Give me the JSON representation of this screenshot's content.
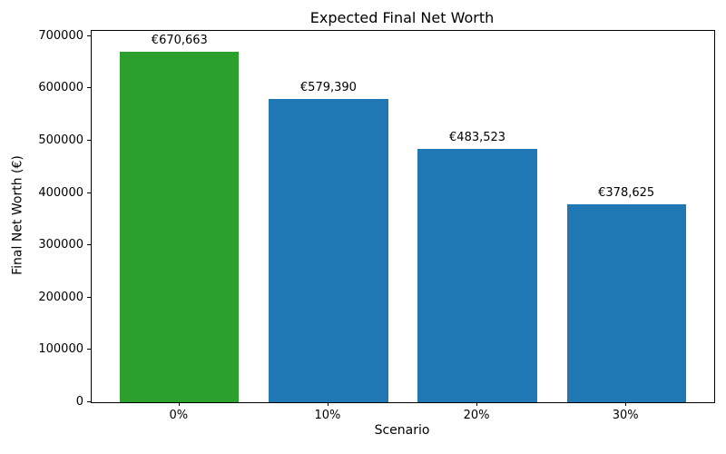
{
  "chart_data": {
    "type": "bar",
    "title": "Expected Final Net Worth",
    "xlabel": "Scenario",
    "ylabel": "Final Net Worth (€)",
    "categories": [
      "0%",
      "10%",
      "20%",
      "30%"
    ],
    "values": [
      670663,
      579390,
      483523,
      378625
    ],
    "bar_labels": [
      "€670,663",
      "€579,390",
      "€483,523",
      "€378,625"
    ],
    "bar_colors": [
      "#2ca02c",
      "#1f77b4",
      "#1f77b4",
      "#1f77b4"
    ],
    "yticks": [
      0,
      100000,
      200000,
      300000,
      400000,
      500000,
      600000,
      700000
    ],
    "ytick_labels": [
      "0",
      "100000",
      "200000",
      "300000",
      "400000",
      "500000",
      "600000",
      "700000"
    ],
    "ylim": [
      0,
      710000
    ],
    "grid": false,
    "legend": false,
    "background_color": "#ffffff",
    "text_color": "#000000",
    "axis_color": "#000000"
  }
}
